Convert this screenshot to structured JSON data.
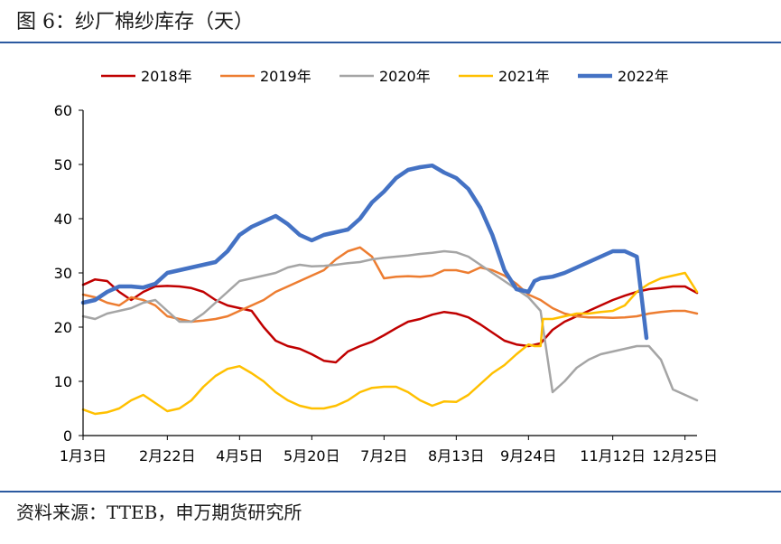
{
  "figure": {
    "title": "图 6：纱厂棉纱库存（天）",
    "source": "资料来源：TTEB，申万期货研究所"
  },
  "chart_data": {
    "type": "line",
    "title": "",
    "xlabel": "",
    "ylabel": "",
    "ylim": [
      0,
      60
    ],
    "yticks": [
      0,
      10,
      20,
      30,
      40,
      50,
      60
    ],
    "x_domain": [
      1,
      52
    ],
    "x_tick_labels": [
      {
        "week": 1,
        "label": "1月3日"
      },
      {
        "week": 8,
        "label": "2月22日"
      },
      {
        "week": 14,
        "label": "4月5日"
      },
      {
        "week": 20,
        "label": "5月20日"
      },
      {
        "week": 26,
        "label": "7月2日"
      },
      {
        "week": 32,
        "label": "8月13日"
      },
      {
        "week": 38,
        "label": "9月24日"
      },
      {
        "week": 45,
        "label": "11月12日"
      },
      {
        "week": 51,
        "label": "12月25日"
      }
    ],
    "grid": false,
    "legend_position": "top",
    "series": [
      {
        "name": "2018年",
        "color": "#c00000",
        "width": 2.5,
        "points": [
          [
            1,
            27.8
          ],
          [
            2,
            28.8
          ],
          [
            3,
            28.5
          ],
          [
            4,
            26.5
          ],
          [
            5,
            25.0
          ],
          [
            6,
            26.5
          ],
          [
            7,
            27.5
          ],
          [
            8,
            27.6
          ],
          [
            9,
            27.5
          ],
          [
            10,
            27.2
          ],
          [
            11,
            26.5
          ],
          [
            12,
            25.0
          ],
          [
            13,
            24.0
          ],
          [
            14,
            23.5
          ],
          [
            15,
            23.0
          ],
          [
            16,
            20.0
          ],
          [
            17,
            17.5
          ],
          [
            18,
            16.5
          ],
          [
            19,
            16.0
          ],
          [
            20,
            15.0
          ],
          [
            21,
            13.8
          ],
          [
            22,
            13.5
          ],
          [
            23,
            15.5
          ],
          [
            24,
            16.5
          ],
          [
            25,
            17.3
          ],
          [
            26,
            18.5
          ],
          [
            27,
            19.8
          ],
          [
            28,
            21.0
          ],
          [
            29,
            21.5
          ],
          [
            30,
            22.3
          ],
          [
            31,
            22.8
          ],
          [
            32,
            22.5
          ],
          [
            33,
            21.8
          ],
          [
            34,
            20.5
          ],
          [
            35,
            19.0
          ],
          [
            36,
            17.5
          ],
          [
            37,
            16.8
          ],
          [
            38,
            16.5
          ],
          [
            39,
            17.0
          ],
          [
            40,
            19.5
          ],
          [
            41,
            21.0
          ],
          [
            42,
            22.0
          ],
          [
            43,
            23.0
          ],
          [
            44,
            24.0
          ],
          [
            45,
            25.0
          ],
          [
            46,
            25.8
          ],
          [
            47,
            26.5
          ],
          [
            48,
            27.0
          ],
          [
            49,
            27.2
          ],
          [
            50,
            27.5
          ],
          [
            51,
            27.5
          ],
          [
            52,
            26.3
          ]
        ]
      },
      {
        "name": "2019年",
        "color": "#ed7d31",
        "width": 2.5,
        "points": [
          [
            1,
            26.0
          ],
          [
            2,
            25.5
          ],
          [
            3,
            24.5
          ],
          [
            4,
            24.0
          ],
          [
            5,
            25.5
          ],
          [
            6,
            25.0
          ],
          [
            7,
            24.0
          ],
          [
            8,
            22.0
          ],
          [
            9,
            21.5
          ],
          [
            10,
            21.0
          ],
          [
            11,
            21.2
          ],
          [
            12,
            21.5
          ],
          [
            13,
            22.0
          ],
          [
            14,
            23.0
          ],
          [
            15,
            24.0
          ],
          [
            16,
            25.0
          ],
          [
            17,
            26.5
          ],
          [
            18,
            27.5
          ],
          [
            19,
            28.5
          ],
          [
            20,
            29.5
          ],
          [
            21,
            30.5
          ],
          [
            22,
            32.5
          ],
          [
            23,
            34.0
          ],
          [
            24,
            34.7
          ],
          [
            25,
            33.0
          ],
          [
            26,
            29.0
          ],
          [
            27,
            29.3
          ],
          [
            28,
            29.4
          ],
          [
            29,
            29.3
          ],
          [
            30,
            29.5
          ],
          [
            31,
            30.5
          ],
          [
            32,
            30.5
          ],
          [
            33,
            30.0
          ],
          [
            34,
            31.0
          ],
          [
            35,
            30.5
          ],
          [
            36,
            29.5
          ],
          [
            37,
            28.0
          ],
          [
            38,
            26.0
          ],
          [
            39,
            25.0
          ],
          [
            40,
            23.5
          ],
          [
            41,
            22.5
          ],
          [
            42,
            22.0
          ],
          [
            43,
            21.8
          ],
          [
            44,
            21.8
          ],
          [
            45,
            21.7
          ],
          [
            46,
            21.8
          ],
          [
            47,
            22.0
          ],
          [
            48,
            22.5
          ],
          [
            49,
            22.8
          ],
          [
            50,
            23.0
          ],
          [
            51,
            23.0
          ],
          [
            52,
            22.5
          ]
        ]
      },
      {
        "name": "2020年",
        "color": "#a5a5a5",
        "width": 2.5,
        "points": [
          [
            1,
            22.0
          ],
          [
            2,
            21.5
          ],
          [
            3,
            22.5
          ],
          [
            4,
            23.0
          ],
          [
            5,
            23.5
          ],
          [
            6,
            24.5
          ],
          [
            7,
            25.0
          ],
          [
            8,
            23.0
          ],
          [
            9,
            21.0
          ],
          [
            10,
            21.0
          ],
          [
            11,
            22.5
          ],
          [
            12,
            24.5
          ],
          [
            13,
            26.5
          ],
          [
            14,
            28.5
          ],
          [
            15,
            29.0
          ],
          [
            16,
            29.5
          ],
          [
            17,
            30.0
          ],
          [
            18,
            31.0
          ],
          [
            19,
            31.5
          ],
          [
            20,
            31.2
          ],
          [
            21,
            31.3
          ],
          [
            22,
            31.5
          ],
          [
            23,
            31.8
          ],
          [
            24,
            32.0
          ],
          [
            25,
            32.5
          ],
          [
            26,
            32.8
          ],
          [
            27,
            33.0
          ],
          [
            28,
            33.2
          ],
          [
            29,
            33.5
          ],
          [
            30,
            33.7
          ],
          [
            31,
            34.0
          ],
          [
            32,
            33.8
          ],
          [
            33,
            33.0
          ],
          [
            34,
            31.5
          ],
          [
            35,
            30.0
          ],
          [
            36,
            28.5
          ],
          [
            37,
            27.0
          ],
          [
            38,
            25.5
          ],
          [
            39,
            23.0
          ],
          [
            40,
            8.0
          ],
          [
            41,
            10.0
          ],
          [
            42,
            12.5
          ],
          [
            43,
            14.0
          ],
          [
            44,
            15.0
          ],
          [
            45,
            15.5
          ],
          [
            46,
            16.0
          ],
          [
            47,
            16.5
          ],
          [
            48,
            16.5
          ],
          [
            49,
            14.0
          ],
          [
            50,
            8.5
          ],
          [
            51,
            7.5
          ],
          [
            52,
            6.5
          ]
        ]
      },
      {
        "name": "2021年",
        "color": "#ffc000",
        "width": 2.5,
        "points": [
          [
            1,
            4.8
          ],
          [
            2,
            4.0
          ],
          [
            3,
            4.3
          ],
          [
            4,
            5.0
          ],
          [
            5,
            6.5
          ],
          [
            6,
            7.5
          ],
          [
            7,
            6.0
          ],
          [
            8,
            4.5
          ],
          [
            9,
            5.0
          ],
          [
            10,
            6.5
          ],
          [
            11,
            9.0
          ],
          [
            12,
            11.0
          ],
          [
            13,
            12.3
          ],
          [
            14,
            12.8
          ],
          [
            15,
            11.5
          ],
          [
            16,
            10.0
          ],
          [
            17,
            8.0
          ],
          [
            18,
            6.5
          ],
          [
            19,
            5.5
          ],
          [
            20,
            5.0
          ],
          [
            21,
            5.0
          ],
          [
            22,
            5.5
          ],
          [
            23,
            6.5
          ],
          [
            24,
            8.0
          ],
          [
            25,
            8.8
          ],
          [
            26,
            9.0
          ],
          [
            27,
            9.0
          ],
          [
            28,
            8.0
          ],
          [
            29,
            6.5
          ],
          [
            30,
            5.5
          ],
          [
            31,
            6.3
          ],
          [
            32,
            6.2
          ],
          [
            33,
            7.5
          ],
          [
            34,
            9.5
          ],
          [
            35,
            11.5
          ],
          [
            36,
            13.0
          ],
          [
            37,
            15.0
          ],
          [
            38,
            16.8
          ],
          [
            38.5,
            16.5
          ],
          [
            39,
            16.5
          ],
          [
            39.2,
            21.5
          ],
          [
            40,
            21.5
          ],
          [
            41,
            22.0
          ],
          [
            42,
            22.5
          ],
          [
            43,
            22.5
          ],
          [
            44,
            22.8
          ],
          [
            45,
            23.0
          ],
          [
            46,
            24.0
          ],
          [
            47,
            26.5
          ],
          [
            48,
            28.0
          ],
          [
            49,
            29.0
          ],
          [
            50,
            29.5
          ],
          [
            51,
            30.0
          ],
          [
            52,
            26.5
          ]
        ]
      },
      {
        "name": "2022年",
        "color": "#4472c4",
        "width": 4.5,
        "points": [
          [
            1,
            24.5
          ],
          [
            2,
            25.0
          ],
          [
            3,
            26.5
          ],
          [
            4,
            27.5
          ],
          [
            5,
            27.5
          ],
          [
            6,
            27.3
          ],
          [
            7,
            28.0
          ],
          [
            8,
            30.0
          ],
          [
            9,
            30.5
          ],
          [
            10,
            31.0
          ],
          [
            11,
            31.5
          ],
          [
            12,
            32.0
          ],
          [
            13,
            34.0
          ],
          [
            14,
            37.0
          ],
          [
            15,
            38.5
          ],
          [
            16,
            39.5
          ],
          [
            17,
            40.5
          ],
          [
            18,
            39.0
          ],
          [
            19,
            37.0
          ],
          [
            20,
            36.0
          ],
          [
            21,
            37.0
          ],
          [
            22,
            37.5
          ],
          [
            23,
            38.0
          ],
          [
            24,
            40.0
          ],
          [
            25,
            43.0
          ],
          [
            26,
            45.0
          ],
          [
            27,
            47.5
          ],
          [
            28,
            49.0
          ],
          [
            29,
            49.5
          ],
          [
            30,
            49.8
          ],
          [
            31,
            48.5
          ],
          [
            32,
            47.5
          ],
          [
            33,
            45.5
          ],
          [
            34,
            42.0
          ],
          [
            35,
            37.0
          ],
          [
            36,
            30.5
          ],
          [
            37,
            27.0
          ],
          [
            38,
            26.5
          ],
          [
            38.5,
            28.5
          ],
          [
            39,
            29.0
          ],
          [
            40,
            29.3
          ],
          [
            41,
            30.0
          ],
          [
            42,
            31.0
          ],
          [
            43,
            32.0
          ],
          [
            44,
            33.0
          ],
          [
            45,
            34.0
          ],
          [
            46,
            34.0
          ],
          [
            47,
            33.0
          ],
          [
            47.8,
            18.0
          ]
        ]
      }
    ]
  }
}
